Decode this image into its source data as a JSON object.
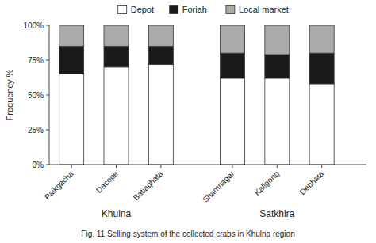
{
  "chart_data": {
    "type": "bar",
    "stacked": true,
    "title": "Fig. 11  Selling system of the collected crabs in Khulna region",
    "y_label": "Frequency %",
    "categories": [
      "Paikgacha",
      "Dacope",
      "Batiaghata",
      "Shamnagar",
      "Kaligong",
      "Debhata"
    ],
    "series": [
      {
        "name": "Depot",
        "color": "#ffffff",
        "values": [
          65,
          70,
          72,
          62,
          62,
          58
        ]
      },
      {
        "name": "Foriah",
        "color": "#1a1a1a",
        "values": [
          20,
          15,
          13,
          18,
          17,
          22
        ]
      },
      {
        "name": "Local market",
        "color": "#aaaaaa",
        "values": [
          15,
          15,
          15,
          20,
          21,
          20
        ]
      }
    ],
    "annotations": [
      {
        "text": "Khulna",
        "categories": [
          "Paikgacha",
          "Dacope",
          "Batiaghata"
        ]
      },
      {
        "text": "Satkhira",
        "categories": [
          "Shamnagar",
          "Kaligong",
          "Debhata"
        ]
      }
    ],
    "ylim": [
      0,
      100
    ],
    "yticks": [
      {
        "value": 0,
        "label": "0%"
      },
      {
        "value": 25,
        "label": "25%"
      },
      {
        "value": 50,
        "label": "50%"
      },
      {
        "value": 75,
        "label": "75%"
      },
      {
        "value": 100,
        "label": "100%"
      }
    ],
    "grid": false,
    "legend": "top"
  }
}
